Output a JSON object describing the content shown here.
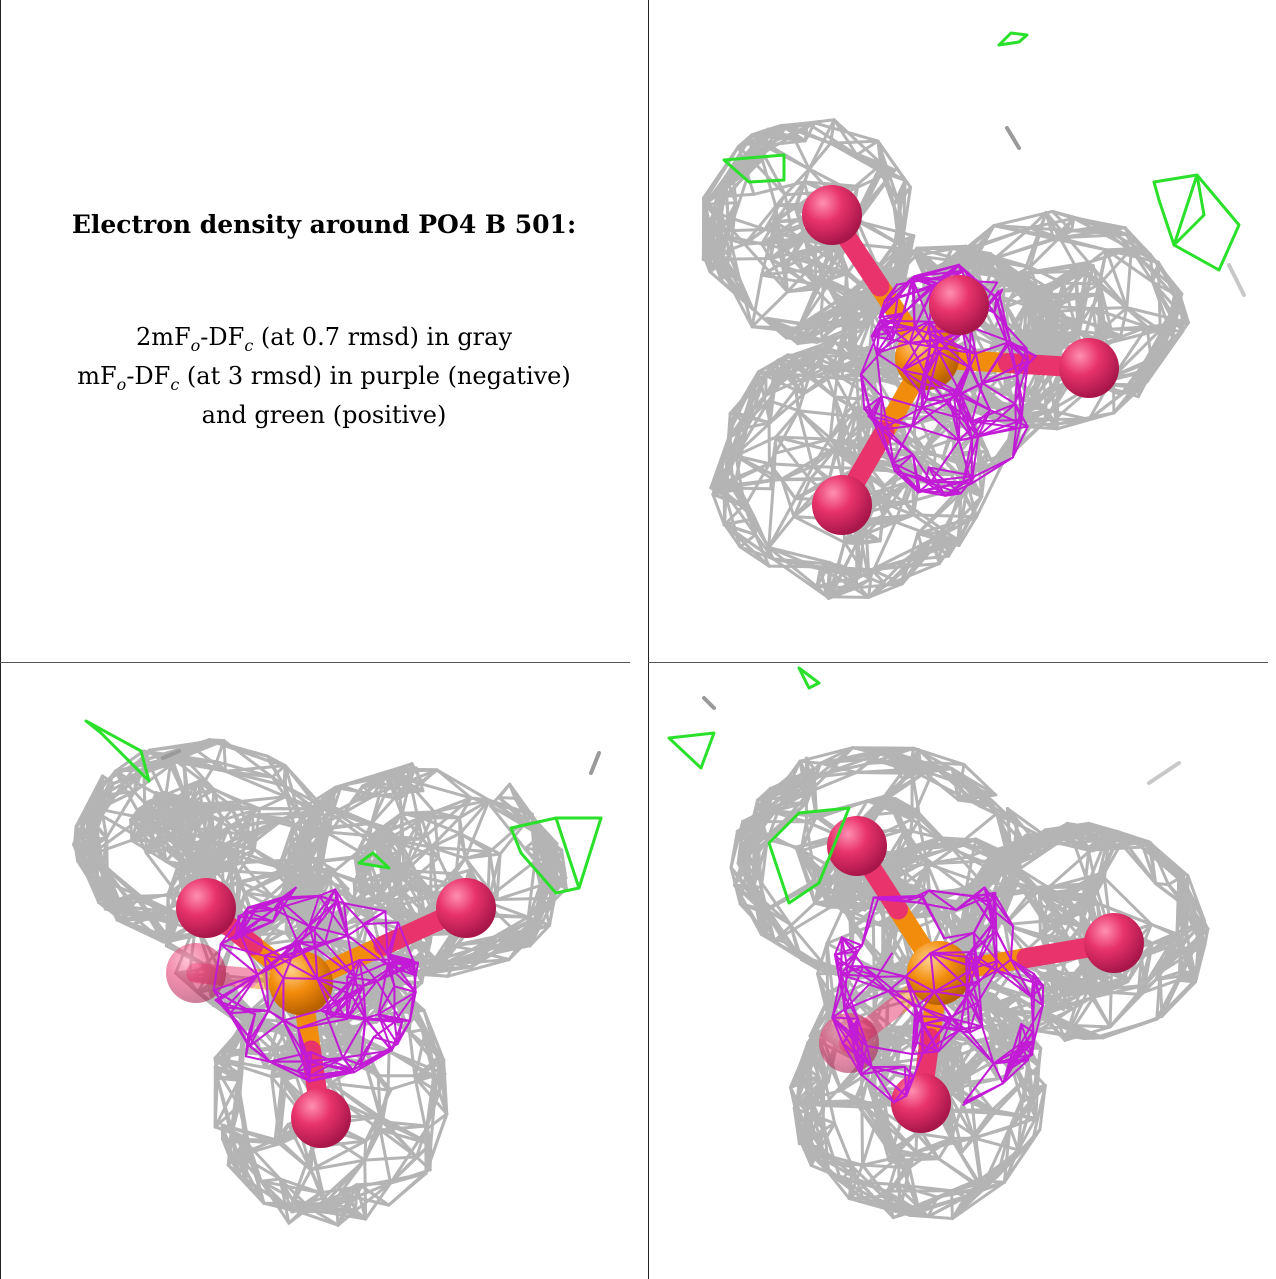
{
  "caption": {
    "title": "Electron density around PO4 B 501:",
    "line1": {
      "a": "2mF",
      "s1": "o",
      "b": "-DF",
      "s2": "c",
      "c": " (at 0.7 rmsd) in gray"
    },
    "line2": {
      "a": "mF",
      "s1": "o",
      "b": "-DF",
      "s2": "c",
      "c": " (at 3 rmsd) in purple (negative)"
    },
    "line3": "and green (positive)"
  },
  "colors": {
    "mesh_gray": "#b4b4b4",
    "mesh_purple": "#c21bd6",
    "mesh_green": "#2be02b",
    "oxygen": "#e8336c",
    "phosphorus": "#f28c0c"
  }
}
